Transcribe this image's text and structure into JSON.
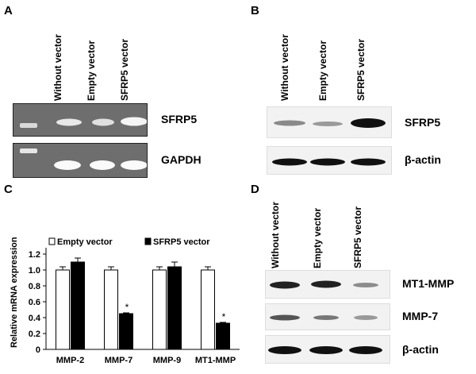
{
  "panels": {
    "A": {
      "letter": "A",
      "lanes": [
        "Without vector",
        "Empty vector",
        "SFRP5 vector"
      ],
      "rows": [
        "SFRP5",
        "GAPDH"
      ]
    },
    "B": {
      "letter": "B",
      "lanes": [
        "Without vector",
        "Empty vector",
        "SFRP5 vector"
      ],
      "rows": [
        "SFRP5",
        "β-actin"
      ]
    },
    "C": {
      "letter": "C"
    },
    "D": {
      "letter": "D",
      "lanes": [
        "Without vector",
        "Empty vector",
        "SFRP5 vector"
      ],
      "rows": [
        "MT1-MMP",
        "MMP-7",
        "β-actin"
      ]
    }
  },
  "chart_data": {
    "type": "bar",
    "ylabel": "Relative mRNA expression",
    "categories": [
      "MMP-2",
      "MMP-7",
      "MMP-9",
      "MT1-MMP"
    ],
    "series": [
      {
        "name": "Empty vector",
        "values": [
          1.0,
          1.0,
          1.0,
          1.0
        ],
        "errors": [
          0.04,
          0.04,
          0.04,
          0.04
        ],
        "color": "#ffffff"
      },
      {
        "name": "SFRP5 vector",
        "values": [
          1.1,
          0.45,
          1.04,
          0.33
        ],
        "errors": [
          0.05,
          0.01,
          0.06,
          0.01
        ],
        "color": "#000000"
      }
    ],
    "significance": [
      "",
      "*",
      "",
      "*"
    ],
    "ylim": [
      0,
      1.2
    ],
    "yticks": [
      "0",
      "0.2",
      "0.4",
      "0.6",
      "0.8",
      "1.0",
      "1.2"
    ],
    "legend": "top"
  }
}
